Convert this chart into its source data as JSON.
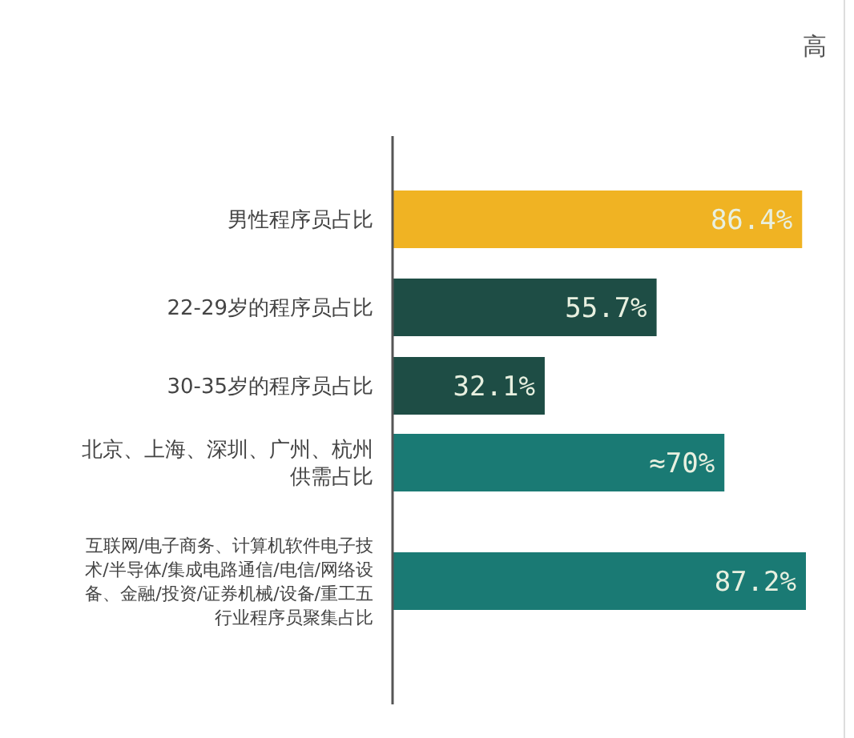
{
  "chart_data": {
    "type": "bar",
    "orientation": "horizontal",
    "categories": [
      "男性程序员占比",
      "22-29岁的程序员占比",
      "30-35岁的程序员占比",
      "北京、上海、深圳、广州、杭州供需占比",
      "互联网/电子商务、计算机软件电子技术/半导体/集成电路通信/电信/网络设备、金融/投资/证券机械/设备/重工五行业程序员聚集占比"
    ],
    "values": [
      86.4,
      55.7,
      32.1,
      70,
      87.2
    ],
    "colors": [
      "#f0b323",
      "#1e4d45",
      "#1e4d45",
      "#1a7a74",
      "#1a7a74"
    ],
    "value_labels": [
      "86.4%",
      "55.7%",
      "32.1%",
      "≈70%",
      "87.2%"
    ],
    "annotations": [
      "高"
    ]
  }
}
